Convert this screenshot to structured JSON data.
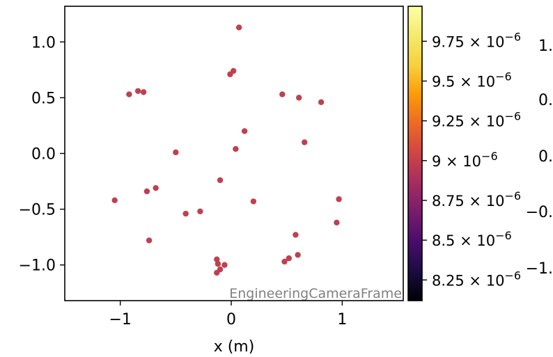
{
  "chart_data": {
    "type": "scatter",
    "xlabel": "x  (m)",
    "xlim": [
      -1.5,
      1.55
    ],
    "ylim": [
      -1.32,
      1.32
    ],
    "xticks": [
      {
        "value": -1,
        "label": "−1"
      },
      {
        "value": 0,
        "label": "0"
      },
      {
        "value": 1,
        "label": "1"
      }
    ],
    "yticks": [
      {
        "value": 1.0,
        "label": "1.0"
      },
      {
        "value": 0.5,
        "label": "0.5"
      },
      {
        "value": 0.0,
        "label": "0.0"
      },
      {
        "value": -0.5,
        "label": "−0.5"
      },
      {
        "value": -1.0,
        "label": "−1.0"
      }
    ],
    "watermark": "EngineeringCameraFrame",
    "point_color": "#c0404f",
    "points": [
      {
        "x": 0.07,
        "y": 1.13
      },
      {
        "x": 0.02,
        "y": 0.74
      },
      {
        "x": -0.01,
        "y": 0.71
      },
      {
        "x": -0.84,
        "y": 0.56
      },
      {
        "x": -0.79,
        "y": 0.55
      },
      {
        "x": -0.92,
        "y": 0.53
      },
      {
        "x": 0.46,
        "y": 0.53
      },
      {
        "x": 0.61,
        "y": 0.5
      },
      {
        "x": 0.81,
        "y": 0.46
      },
      {
        "x": 0.12,
        "y": 0.2
      },
      {
        "x": 0.66,
        "y": 0.1
      },
      {
        "x": 0.04,
        "y": 0.04
      },
      {
        "x": -0.5,
        "y": 0.01
      },
      {
        "x": -0.1,
        "y": -0.24
      },
      {
        "x": -0.68,
        "y": -0.31
      },
      {
        "x": -0.76,
        "y": -0.34
      },
      {
        "x": -1.05,
        "y": -0.42
      },
      {
        "x": 0.2,
        "y": -0.43
      },
      {
        "x": 0.97,
        "y": -0.41
      },
      {
        "x": -0.28,
        "y": -0.52
      },
      {
        "x": -0.41,
        "y": -0.54
      },
      {
        "x": 0.95,
        "y": -0.62
      },
      {
        "x": 0.58,
        "y": -0.73
      },
      {
        "x": -0.74,
        "y": -0.78
      },
      {
        "x": 0.6,
        "y": -0.91
      },
      {
        "x": 0.52,
        "y": -0.94
      },
      {
        "x": 0.48,
        "y": -0.97
      },
      {
        "x": -0.13,
        "y": -0.95
      },
      {
        "x": -0.12,
        "y": -0.99
      },
      {
        "x": -0.06,
        "y": -1.0
      },
      {
        "x": -0.1,
        "y": -1.04
      },
      {
        "x": -0.13,
        "y": -1.07
      }
    ],
    "colorbar": {
      "colormap": "inferno",
      "range": [
        8.12e-06,
        9.97e-06
      ],
      "ticks": [
        {
          "value": 9.75e-06,
          "mantissa": "9.75",
          "exp": "−6"
        },
        {
          "value": 9.5e-06,
          "mantissa": "9.5",
          "exp": "−6"
        },
        {
          "value": 9.25e-06,
          "mantissa": "9.25",
          "exp": "−6"
        },
        {
          "value": 9e-06,
          "mantissa": "9",
          "exp": "−6"
        },
        {
          "value": 8.75e-06,
          "mantissa": "8.75",
          "exp": "−6"
        },
        {
          "value": 8.5e-06,
          "mantissa": "8.5",
          "exp": "−6"
        },
        {
          "value": 8.25e-06,
          "mantissa": "8.25",
          "exp": "−6"
        }
      ]
    },
    "clipped_right_labels": [
      "1.",
      "0.",
      "0.",
      "−0.",
      "−1."
    ]
  }
}
